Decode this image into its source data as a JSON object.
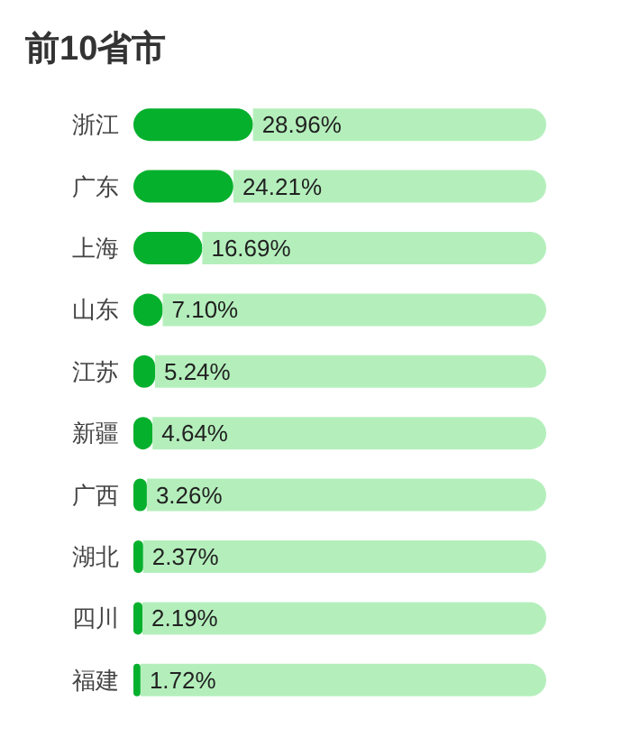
{
  "chart_data": {
    "type": "bar",
    "title": "前10省市",
    "orientation": "horizontal",
    "stacked": true,
    "categories": [
      "浙江",
      "广东",
      "上海",
      "山东",
      "江苏",
      "新疆",
      "广西",
      "湖北",
      "四川",
      "福建"
    ],
    "series": [
      {
        "color": "#05b02c",
        "values": [
          28.96,
          24.21,
          16.69,
          7.1,
          5.24,
          4.64,
          3.26,
          2.37,
          2.19,
          1.72
        ],
        "value_labels": [
          "28.96%",
          "24.21%",
          "16.69%",
          "7.10%",
          "5.24%",
          "4.64%",
          "3.26%",
          "2.37%",
          "2.19%",
          "1.72%"
        ]
      },
      {
        "color": "#b4efbb",
        "values": [
          71.04,
          75.79,
          83.31,
          92.9,
          94.76,
          95.36,
          96.74,
          97.63,
          97.81,
          98.28
        ]
      }
    ],
    "xlim": [
      0,
      100
    ],
    "tick_labels": false,
    "grid": false
  }
}
